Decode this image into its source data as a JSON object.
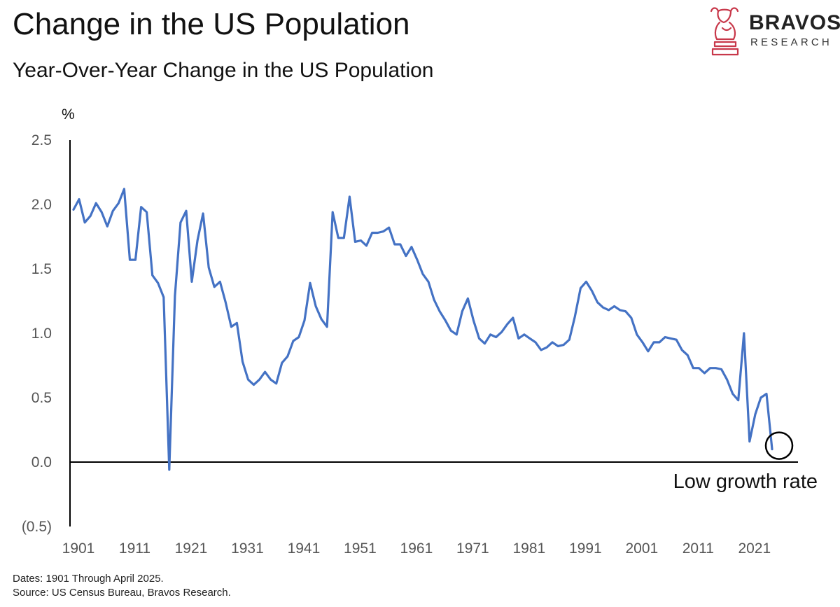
{
  "header": {
    "title": "Change in the US Population",
    "subtitle": "Year-Over-Year Change in the US Population"
  },
  "logo": {
    "name": "BRAVOS",
    "sub": "RESEARCH",
    "icon": "bull-chess-knight-icon",
    "color": "#c8384a"
  },
  "footer": {
    "dates": "Dates: 1901 Through April 2025.",
    "source": "Source: US Census Bureau, Bravos Research."
  },
  "colors": {
    "line": "#4472c4",
    "axis": "#000000"
  },
  "chart_data": {
    "type": "line",
    "title": "Change in the US Population",
    "subtitle": "Year-Over-Year Change in the US Population",
    "ylabel": "%",
    "xlabel": "",
    "ylim": [
      -0.5,
      2.5
    ],
    "xlim": [
      1901,
      2025
    ],
    "yticks": [
      2.5,
      2.0,
      1.5,
      1.0,
      0.5,
      0.0,
      -0.5
    ],
    "ytick_labels": [
      "2.5",
      "2.0",
      "1.5",
      "1.0",
      "0.5",
      "0.0",
      "(0.5)"
    ],
    "xticks": [
      1901,
      1911,
      1921,
      1931,
      1941,
      1951,
      1961,
      1971,
      1981,
      1991,
      2001,
      2011,
      2021
    ],
    "xtick_labels": [
      "1901",
      "1911",
      "1921",
      "1931",
      "1941",
      "1951",
      "1961",
      "1971",
      "1981",
      "1991",
      "2001",
      "2011",
      "2021"
    ],
    "grid": false,
    "legend": "none",
    "annotation": {
      "text": "Low growth rate",
      "x": 2025,
      "y": 0.1
    },
    "series": [
      {
        "name": "US Population YoY Change (%)",
        "x": [
          1901,
          1902,
          1903,
          1904,
          1905,
          1906,
          1907,
          1908,
          1909,
          1910,
          1911,
          1912,
          1913,
          1914,
          1915,
          1916,
          1917,
          1918,
          1919,
          1920,
          1921,
          1922,
          1923,
          1924,
          1925,
          1926,
          1927,
          1928,
          1929,
          1930,
          1931,
          1932,
          1933,
          1934,
          1935,
          1936,
          1937,
          1938,
          1939,
          1940,
          1941,
          1942,
          1943,
          1944,
          1945,
          1946,
          1947,
          1948,
          1949,
          1950,
          1951,
          1952,
          1953,
          1954,
          1955,
          1956,
          1957,
          1958,
          1959,
          1960,
          1961,
          1962,
          1963,
          1964,
          1965,
          1966,
          1967,
          1968,
          1969,
          1970,
          1971,
          1972,
          1973,
          1974,
          1975,
          1976,
          1977,
          1978,
          1979,
          1980,
          1981,
          1982,
          1983,
          1984,
          1985,
          1986,
          1987,
          1988,
          1989,
          1990,
          1991,
          1992,
          1993,
          1994,
          1995,
          1996,
          1997,
          1998,
          1999,
          2000,
          2001,
          2002,
          2003,
          2004,
          2005,
          2006,
          2007,
          2008,
          2009,
          2010,
          2011,
          2012,
          2013,
          2014,
          2015,
          2016,
          2017,
          2018,
          2019,
          2020,
          2021,
          2022,
          2023,
          2024,
          2025
        ],
        "values": [
          1.96,
          2.04,
          1.86,
          1.91,
          2.01,
          1.94,
          1.83,
          1.95,
          2.01,
          2.12,
          1.57,
          1.57,
          1.98,
          1.94,
          1.45,
          1.39,
          1.28,
          -0.06,
          1.29,
          1.86,
          1.95,
          1.4,
          1.72,
          1.93,
          1.51,
          1.36,
          1.4,
          1.24,
          1.05,
          1.08,
          0.78,
          0.64,
          0.6,
          0.64,
          0.7,
          0.64,
          0.61,
          0.77,
          0.82,
          0.94,
          0.97,
          1.1,
          1.39,
          1.21,
          1.11,
          1.05,
          1.94,
          1.74,
          1.74,
          2.06,
          1.71,
          1.72,
          1.68,
          1.78,
          1.78,
          1.79,
          1.82,
          1.69,
          1.69,
          1.6,
          1.67,
          1.57,
          1.46,
          1.4,
          1.26,
          1.17,
          1.1,
          1.02,
          0.99,
          1.17,
          1.27,
          1.1,
          0.96,
          0.92,
          0.99,
          0.97,
          1.01,
          1.07,
          1.12,
          0.96,
          0.99,
          0.96,
          0.93,
          0.87,
          0.89,
          0.93,
          0.9,
          0.91,
          0.95,
          1.13,
          1.35,
          1.4,
          1.33,
          1.24,
          1.2,
          1.18,
          1.21,
          1.18,
          1.17,
          1.12,
          0.99,
          0.93,
          0.86,
          0.93,
          0.93,
          0.97,
          0.96,
          0.95,
          0.87,
          0.83,
          0.73,
          0.73,
          0.69,
          0.73,
          0.73,
          0.72,
          0.64,
          0.53,
          0.48,
          1.0,
          0.16,
          0.37,
          0.5,
          0.53,
          0.1
        ]
      }
    ]
  }
}
